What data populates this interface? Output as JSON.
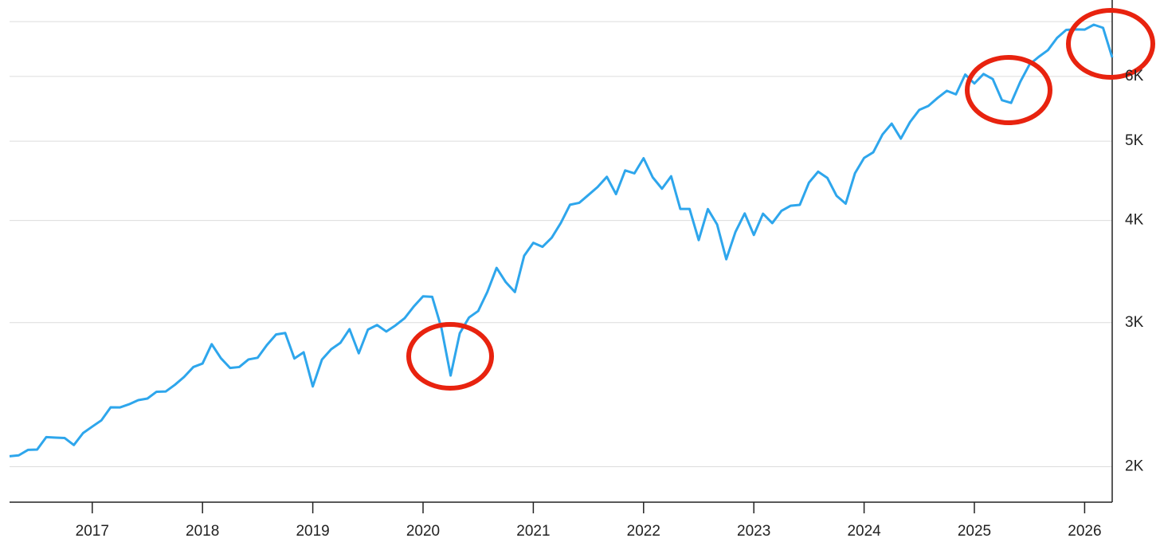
{
  "chart_data": {
    "type": "line",
    "log_scale": true,
    "grid": true,
    "color": "#2ea6ec",
    "x": [
      2016.25,
      2016.333,
      2016.417,
      2016.5,
      2016.583,
      2016.667,
      2016.75,
      2016.833,
      2016.917,
      2017.0,
      2017.083,
      2017.167,
      2017.25,
      2017.333,
      2017.417,
      2017.5,
      2017.583,
      2017.667,
      2017.75,
      2017.833,
      2017.917,
      2018.0,
      2018.083,
      2018.167,
      2018.25,
      2018.333,
      2018.417,
      2018.5,
      2018.583,
      2018.667,
      2018.75,
      2018.833,
      2018.917,
      2019.0,
      2019.083,
      2019.167,
      2019.25,
      2019.333,
      2019.417,
      2019.5,
      2019.583,
      2019.667,
      2019.75,
      2019.833,
      2019.917,
      2020.0,
      2020.083,
      2020.167,
      2020.25,
      2020.333,
      2020.417,
      2020.5,
      2020.583,
      2020.667,
      2020.75,
      2020.833,
      2020.917,
      2021.0,
      2021.083,
      2021.167,
      2021.25,
      2021.333,
      2021.417,
      2021.5,
      2021.583,
      2021.667,
      2021.75,
      2021.833,
      2021.917,
      2022.0,
      2022.083,
      2022.167,
      2022.25,
      2022.333,
      2022.417,
      2022.5,
      2022.583,
      2022.667,
      2022.75,
      2022.833,
      2022.917,
      2023.0,
      2023.083,
      2023.167,
      2023.25,
      2023.333,
      2023.417,
      2023.5,
      2023.583,
      2023.667,
      2023.75,
      2023.833,
      2023.917,
      2024.0,
      2024.083,
      2024.167,
      2024.25,
      2024.333,
      2024.417,
      2024.5,
      2024.583,
      2024.667,
      2024.75,
      2024.833,
      2024.917,
      2025.0,
      2025.083,
      2025.167,
      2025.25,
      2025.333,
      2025.417,
      2025.5,
      2025.583,
      2025.667,
      2025.75,
      2025.833,
      2025.917,
      2026.0,
      2026.083,
      2026.167,
      2026.25
    ],
    "values": [
      2060,
      2065,
      2097,
      2099,
      2174,
      2171,
      2168,
      2126,
      2199,
      2239,
      2279,
      2364,
      2363,
      2384,
      2412,
      2423,
      2470,
      2472,
      2519,
      2575,
      2648,
      2674,
      2824,
      2714,
      2641,
      2648,
      2705,
      2718,
      2816,
      2902,
      2914,
      2712,
      2760,
      2507,
      2704,
      2784,
      2834,
      2946,
      2752,
      2942,
      2980,
      2926,
      2977,
      3038,
      3141,
      3231,
      3226,
      2954,
      2585,
      2912,
      3044,
      3100,
      3271,
      3500,
      3363,
      3270,
      3622,
      3756,
      3714,
      3811,
      3973,
      4181,
      4204,
      4298,
      4395,
      4523,
      4308,
      4605,
      4567,
      4766,
      4516,
      4374,
      4530,
      4132,
      4132,
      3785,
      4130,
      3955,
      3586,
      3872,
      4080,
      3840,
      4077,
      3970,
      4109,
      4169,
      4180,
      4450,
      4589,
      4508,
      4288,
      4194,
      4568,
      4770,
      4846,
      5096,
      5254,
      5036,
      5278,
      5460,
      5522,
      5648,
      5762,
      5705,
      6032,
      5882,
      6041,
      5955,
      5612,
      5569,
      5912,
      6205,
      6339,
      6460,
      6688,
      6840,
      6849,
      6845,
      6940,
      6880,
      6330
    ],
    "xlim": [
      2016.25,
      2026.25
    ],
    "xticks": [
      2017,
      2018,
      2019,
      2020,
      2021,
      2022,
      2023,
      2024,
      2025,
      2026
    ],
    "ylim": [
      1810,
      7440
    ],
    "yticks": [
      {
        "value": 2000,
        "label": "2K"
      },
      {
        "value": 3000,
        "label": "3K"
      },
      {
        "value": 4000,
        "label": "4K"
      },
      {
        "value": 5000,
        "label": "5K"
      },
      {
        "value": 6000,
        "label": "6K"
      }
    ],
    "extra_grid_y": [
      7000
    ]
  }
}
